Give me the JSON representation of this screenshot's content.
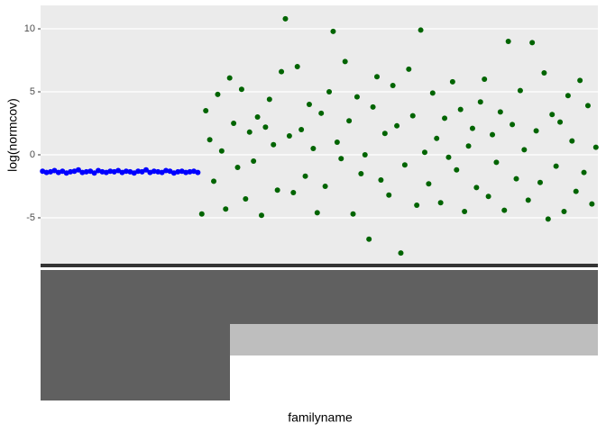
{
  "chart_data": {
    "type": "scatter",
    "x_label": "familyname",
    "y_label": "log(normcov)",
    "ylim": [
      -8.93,
      11.86
    ],
    "yticks": [
      -5,
      0,
      5,
      10
    ],
    "grid": true,
    "series": [
      {
        "color": "#0000ff",
        "values": [
          -1.3,
          -1.4,
          -1.35,
          -1.25,
          -1.4,
          -1.3,
          -1.45,
          -1.35,
          -1.3,
          -1.2,
          -1.4,
          -1.35,
          -1.3,
          -1.45,
          -1.25,
          -1.35,
          -1.4,
          -1.3,
          -1.35,
          -1.25,
          -1.4,
          -1.3,
          -1.35,
          -1.45,
          -1.3,
          -1.35,
          -1.2,
          -1.4,
          -1.3,
          -1.35,
          -1.4,
          -1.25,
          -1.3,
          -1.45,
          -1.35,
          -1.3,
          -1.4,
          -1.35,
          -1.3,
          -1.4
        ]
      },
      {
        "color": "#006400",
        "values": [
          -4.7,
          3.5,
          1.2,
          -2.1,
          4.8,
          0.3,
          -4.3,
          6.1,
          2.5,
          -1.0,
          5.2,
          -3.5,
          1.8,
          -0.5,
          3.0,
          -4.8,
          2.2,
          4.4,
          0.8,
          -2.8,
          6.6,
          10.8,
          1.5,
          -3.0,
          7.0,
          2.0,
          -1.7,
          4.0,
          0.5,
          -4.6,
          3.3,
          -2.5,
          5.0,
          9.8,
          1.0,
          -0.3,
          7.4,
          2.7,
          -4.7,
          4.6,
          -1.5,
          0.0,
          -6.7,
          3.8,
          6.2,
          -2.0,
          1.7,
          -3.2,
          5.5,
          2.3,
          -7.8,
          -0.8,
          6.8,
          3.1,
          -4.0,
          9.9,
          0.2,
          -2.3,
          4.9,
          1.3,
          -3.8,
          2.9,
          -0.2,
          5.8,
          -1.2,
          3.6,
          -4.5,
          0.7,
          2.1,
          -2.6,
          4.2,
          6.0,
          -3.3,
          1.6,
          -0.6,
          3.4,
          -4.4,
          9.0,
          2.4,
          -1.9,
          5.1,
          0.4,
          -3.6,
          8.9,
          1.9,
          -2.2,
          6.5,
          -5.1,
          3.2,
          -0.9,
          2.6,
          -4.5,
          4.7,
          1.1,
          -2.9,
          5.9,
          -1.4,
          3.9,
          -3.9,
          0.6
        ]
      }
    ]
  }
}
